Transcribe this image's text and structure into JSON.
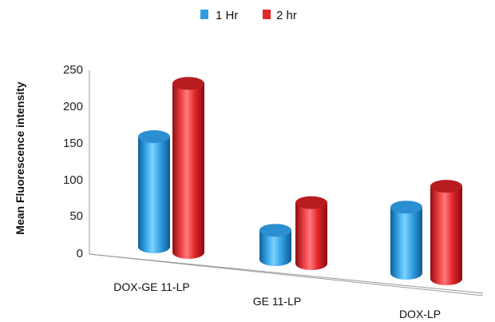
{
  "chart_data": {
    "type": "bar",
    "style": "3d-cylinder",
    "categories": [
      "DOX-GE 11-LP",
      "GE 11-LP",
      "DOX-LP"
    ],
    "series": [
      {
        "name": "1 Hr",
        "values": [
          150,
          40,
          90
        ],
        "color": "#2f9de0"
      },
      {
        "name": "2 hr",
        "values": [
          230,
          83,
          126
        ],
        "color": "#e2262a"
      }
    ],
    "y_ticks": [
      "0",
      "50",
      "100",
      "150",
      "200",
      "250"
    ],
    "ylim": [
      0,
      250
    ],
    "ylabel": "Mean Fluorescence intensity",
    "xlabel": "",
    "grid": false,
    "legend_position": "top-center"
  }
}
